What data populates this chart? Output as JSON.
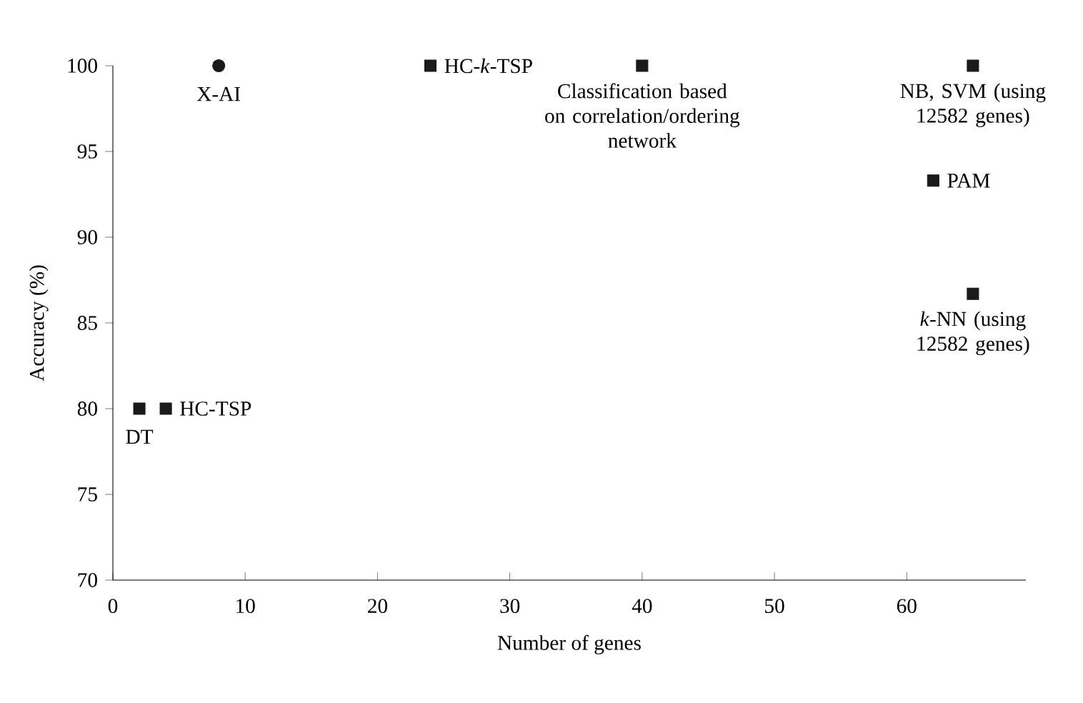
{
  "chart_data": {
    "type": "scatter",
    "xlabel": "Number of genes",
    "ylabel": "Accuracy (%)",
    "series": [
      {
        "color": "#1a1a1a",
        "marker": "circle",
        "x": [
          8
        ],
        "values": [
          100
        ]
      },
      {
        "color": "#1a1a1a",
        "marker": "square",
        "x": [
          24,
          40,
          65,
          62,
          65,
          2,
          4
        ],
        "values": [
          100,
          100,
          100,
          93.3,
          86.7,
          80,
          80
        ]
      }
    ],
    "xlim": [
      0,
      69
    ],
    "ylim": [
      70,
      100
    ],
    "xticks": [
      0,
      10,
      20,
      30,
      40,
      50,
      60
    ],
    "yticks": [
      70,
      75,
      80,
      85,
      90,
      95,
      100
    ],
    "grid": false,
    "annotations": [
      {
        "text": "X-AI",
        "x": 8,
        "y": 100
      },
      {
        "text": "HC-*k*-TSP",
        "x": 24,
        "y": 100
      },
      {
        "text": "Classification based on correlation/ordering network",
        "x": 40,
        "y": 100
      },
      {
        "text": "NB, SVM (using 12582 genes)",
        "x": 65,
        "y": 100
      },
      {
        "text": "PAM",
        "x": 62,
        "y": 93.3
      },
      {
        "text": "*k*-NN (using 12582 genes)",
        "x": 65,
        "y": 86.7
      },
      {
        "text": "DT",
        "x": 2,
        "y": 80
      },
      {
        "text": "HC-TSP",
        "x": 4,
        "y": 80
      }
    ]
  }
}
